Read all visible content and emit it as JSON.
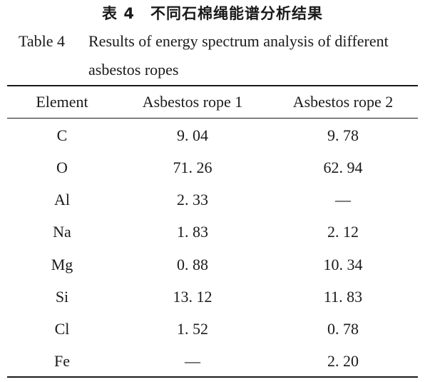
{
  "caption": {
    "chinese_label": "表 4",
    "chinese_title": "不同石棉绳能谱分析结果",
    "english_label": "Table 4",
    "english_title": "Results of energy spectrum analysis of different asbestos ropes"
  },
  "table": {
    "headers": [
      "Element",
      "Asbestos rope 1",
      "Asbestos rope 2"
    ],
    "rows": [
      [
        "C",
        "9. 04",
        "9. 78"
      ],
      [
        "O",
        "71. 26",
        "62. 94"
      ],
      [
        "Al",
        "2. 33",
        "—"
      ],
      [
        "Na",
        "1. 83",
        "2. 12"
      ],
      [
        "Mg",
        "0. 88",
        "10. 34"
      ],
      [
        "Si",
        "13. 12",
        "11. 83"
      ],
      [
        "Cl",
        "1. 52",
        "0. 78"
      ],
      [
        "Fe",
        "—",
        "2. 20"
      ]
    ]
  }
}
